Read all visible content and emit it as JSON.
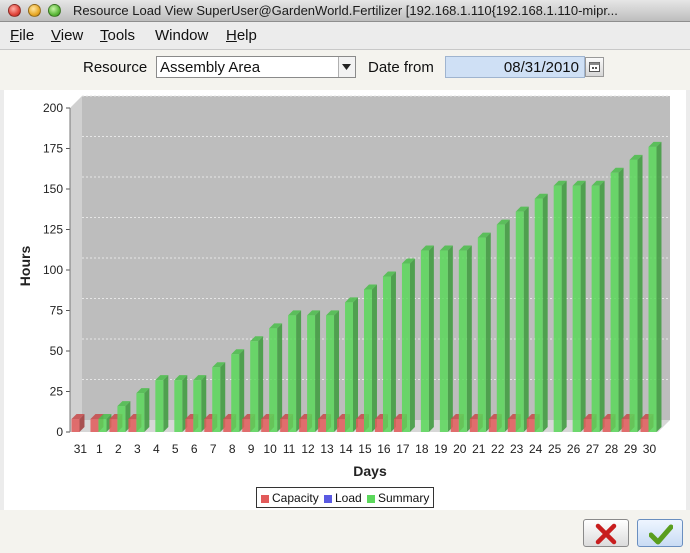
{
  "window": {
    "title": "Resource Load View  SuperUser@GardenWorld.Fertilizer [192.168.1.110{192.168.1.110-mipr..."
  },
  "menu": {
    "items": [
      {
        "label": "File",
        "ul": "F",
        "rest": "ile"
      },
      {
        "label": "View",
        "ul": "V",
        "rest": "iew"
      },
      {
        "label": "Tools",
        "ul": "T",
        "rest": "ools"
      },
      {
        "label": "Window",
        "ul": "",
        "rest": "Window"
      },
      {
        "label": "Help",
        "ul": "H",
        "rest": "elp"
      }
    ]
  },
  "filters": {
    "resource_label": "Resource",
    "resource_value": "Assembly Area",
    "date_label": "Date from",
    "date_value": "08/31/2010"
  },
  "colors": {
    "capacity": "#e25a5a",
    "load": "#5a5ae2",
    "summary": "#5bd85b",
    "plot_bg": "#bdbdbd"
  },
  "chart_data": {
    "type": "bar",
    "xlabel": "Days",
    "ylabel": "Hours",
    "ylim": [
      0,
      200
    ],
    "yticks": [
      0,
      25,
      50,
      75,
      100,
      125,
      150,
      175,
      200
    ],
    "grid": true,
    "legend_position": "bottom",
    "categories": [
      "31",
      "1",
      "2",
      "3",
      "4",
      "5",
      "6",
      "7",
      "8",
      "9",
      "10",
      "11",
      "12",
      "13",
      "14",
      "15",
      "16",
      "17",
      "18",
      "19",
      "20",
      "21",
      "22",
      "23",
      "24",
      "25",
      "26",
      "27",
      "28",
      "29",
      "30"
    ],
    "series": [
      {
        "name": "Capacity",
        "values": [
          8,
          8,
          8,
          8,
          0,
          0,
          8,
          8,
          8,
          8,
          8,
          8,
          8,
          8,
          8,
          8,
          8,
          8,
          0,
          0,
          8,
          8,
          8,
          8,
          8,
          0,
          0,
          8,
          8,
          8,
          8
        ]
      },
      {
        "name": "Load",
        "values": [
          0,
          0,
          0,
          0,
          0,
          0,
          0,
          0,
          0,
          0,
          0,
          0,
          0,
          0,
          0,
          0,
          0,
          0,
          0,
          0,
          0,
          0,
          0,
          0,
          0,
          0,
          0,
          0,
          0,
          0,
          0
        ]
      },
      {
        "name": "Summary",
        "values": [
          0,
          8,
          16,
          24,
          32,
          32,
          32,
          40,
          48,
          56,
          64,
          72,
          72,
          72,
          80,
          88,
          96,
          104,
          112,
          112,
          112,
          120,
          128,
          136,
          144,
          152,
          152,
          152,
          160,
          168,
          176
        ]
      }
    ]
  },
  "actions": {
    "cancel": "cancel",
    "ok": "ok"
  }
}
